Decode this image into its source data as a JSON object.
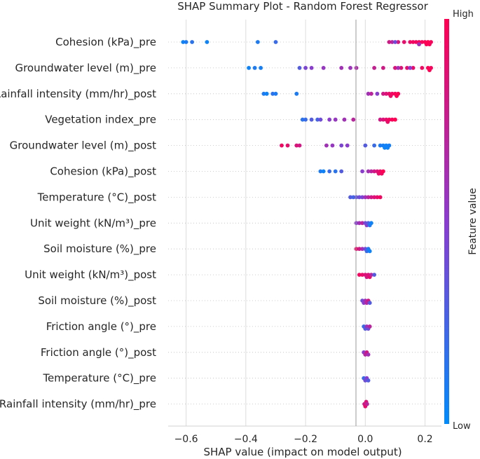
{
  "chart_data": {
    "type": "scatter",
    "subtype": "shap-beeswarm",
    "title": "SHAP Summary Plot - Random Forest Regressor",
    "xlabel": "SHAP value (impact on model output)",
    "ylabel": "",
    "xlim": [
      -0.66,
      0.255
    ],
    "x_ticks": [
      -0.6,
      -0.4,
      -0.2,
      0.0,
      0.2
    ],
    "x_tick_labels": [
      "−0.6",
      "−0.4",
      "−0.2",
      "0.0",
      "0.2"
    ],
    "grid": "vertical",
    "colorbar": {
      "label": "Feature value",
      "high_label": "High",
      "low_label": "Low",
      "low_color": "#008bfb",
      "high_color": "#ff0052"
    },
    "features": [
      {
        "name": "Cohesion (kPa)_pre",
        "points": [
          [
            -0.61,
            0.05
          ],
          [
            -0.6,
            0.1
          ],
          [
            -0.58,
            0.15
          ],
          [
            -0.53,
            0.05
          ],
          [
            -0.36,
            0.1
          ],
          [
            -0.3,
            0.2
          ],
          [
            0.08,
            0.8
          ],
          [
            0.09,
            0.7
          ],
          [
            0.11,
            0.85
          ],
          [
            0.13,
            0.9
          ],
          [
            0.15,
            0.92
          ],
          [
            0.16,
            0.95
          ],
          [
            0.17,
            0.95
          ],
          [
            0.18,
            0.97
          ],
          [
            0.19,
            0.96
          ],
          [
            0.2,
            0.98
          ],
          [
            0.205,
            0.99
          ],
          [
            0.21,
            1.0
          ],
          [
            0.215,
            0.98
          ],
          [
            0.22,
            0.97
          ],
          [
            0.18,
            0.6
          ],
          [
            0.1,
            0.4
          ]
        ]
      },
      {
        "name": "Groundwater level (m)_pre",
        "points": [
          [
            -0.39,
            0.05
          ],
          [
            -0.37,
            0.1
          ],
          [
            -0.35,
            0.08
          ],
          [
            -0.22,
            0.3
          ],
          [
            -0.2,
            0.45
          ],
          [
            -0.18,
            0.5
          ],
          [
            -0.14,
            0.55
          ],
          [
            -0.08,
            0.6
          ],
          [
            -0.05,
            0.58
          ],
          [
            -0.03,
            0.65
          ],
          [
            0.03,
            0.75
          ],
          [
            0.06,
            0.8
          ],
          [
            0.1,
            0.85
          ],
          [
            0.12,
            0.88
          ],
          [
            0.14,
            0.9
          ],
          [
            0.16,
            0.92
          ],
          [
            0.19,
            0.95
          ],
          [
            0.21,
            0.98
          ],
          [
            0.215,
            1.0
          ],
          [
            0.22,
            0.96
          ],
          [
            0.11,
            0.6
          ],
          [
            0.15,
            0.5
          ]
        ]
      },
      {
        "name": "Rainfall intensity (mm/hr)_post",
        "points": [
          [
            -0.34,
            0.1
          ],
          [
            -0.33,
            0.05
          ],
          [
            -0.31,
            0.15
          ],
          [
            -0.3,
            0.1
          ],
          [
            -0.23,
            0.1
          ],
          [
            0.01,
            0.6
          ],
          [
            0.02,
            0.7
          ],
          [
            0.04,
            0.5
          ],
          [
            0.06,
            0.8
          ],
          [
            0.07,
            0.85
          ],
          [
            0.08,
            0.9
          ],
          [
            0.085,
            0.92
          ],
          [
            0.09,
            0.95
          ],
          [
            0.1,
            0.97
          ],
          [
            0.105,
            0.99
          ],
          [
            0.11,
            1.0
          ]
        ]
      },
      {
        "name": "Vegetation index_pre",
        "points": [
          [
            -0.21,
            0.15
          ],
          [
            -0.2,
            0.2
          ],
          [
            -0.18,
            0.3
          ],
          [
            -0.16,
            0.25
          ],
          [
            -0.15,
            0.4
          ],
          [
            -0.12,
            0.5
          ],
          [
            -0.1,
            0.55
          ],
          [
            -0.07,
            0.6
          ],
          [
            -0.04,
            0.7
          ],
          [
            0.05,
            0.8
          ],
          [
            0.06,
            0.85
          ],
          [
            0.07,
            0.9
          ],
          [
            0.075,
            0.92
          ],
          [
            0.08,
            0.95
          ],
          [
            0.09,
            0.97
          ],
          [
            0.1,
            1.0
          ]
        ]
      },
      {
        "name": "Groundwater level (m)_post",
        "points": [
          [
            -0.28,
            0.95
          ],
          [
            -0.26,
            0.9
          ],
          [
            -0.23,
            0.85
          ],
          [
            -0.22,
            0.8
          ],
          [
            -0.13,
            0.6
          ],
          [
            -0.11,
            0.55
          ],
          [
            -0.08,
            0.45
          ],
          [
            -0.06,
            0.5
          ],
          [
            0.0,
            0.3
          ],
          [
            0.03,
            0.2
          ],
          [
            0.05,
            0.1
          ],
          [
            0.06,
            0.08
          ],
          [
            0.065,
            0.05
          ],
          [
            0.07,
            0.06
          ],
          [
            0.075,
            0.05
          ],
          [
            0.08,
            0.08
          ]
        ]
      },
      {
        "name": "Cohesion (kPa)_post",
        "points": [
          [
            -0.15,
            0.1
          ],
          [
            -0.14,
            0.05
          ],
          [
            -0.12,
            0.2
          ],
          [
            -0.1,
            0.15
          ],
          [
            -0.08,
            0.3
          ],
          [
            -0.01,
            0.5
          ],
          [
            0.01,
            0.6
          ],
          [
            0.02,
            0.7
          ],
          [
            0.03,
            0.8
          ],
          [
            0.04,
            0.85
          ],
          [
            0.045,
            0.9
          ],
          [
            0.05,
            0.92
          ],
          [
            0.055,
            0.95
          ],
          [
            0.06,
            1.0
          ]
        ]
      },
      {
        "name": "Temperature (°C)_post",
        "points": [
          [
            -0.05,
            0.3
          ],
          [
            -0.04,
            0.25
          ],
          [
            -0.03,
            0.35
          ],
          [
            -0.02,
            0.4
          ],
          [
            -0.01,
            0.45
          ],
          [
            0.0,
            0.6
          ],
          [
            0.01,
            0.7
          ],
          [
            0.02,
            0.8
          ],
          [
            0.03,
            0.85
          ],
          [
            0.04,
            0.9
          ],
          [
            0.05,
            0.95
          ]
        ]
      },
      {
        "name": "Unit weight (kN/m³)_pre",
        "points": [
          [
            -0.03,
            0.5
          ],
          [
            -0.02,
            0.6
          ],
          [
            -0.01,
            0.7
          ],
          [
            0.0,
            0.4
          ],
          [
            0.005,
            0.5
          ],
          [
            0.01,
            0.3
          ],
          [
            0.015,
            0.1
          ],
          [
            0.02,
            0.05
          ]
        ]
      },
      {
        "name": "Soil moisture (%)_pre",
        "points": [
          [
            -0.03,
            0.9
          ],
          [
            -0.02,
            0.8
          ],
          [
            -0.01,
            0.6
          ],
          [
            0.0,
            0.4
          ],
          [
            0.005,
            0.2
          ],
          [
            0.01,
            0.1
          ],
          [
            0.015,
            0.05
          ]
        ]
      },
      {
        "name": "Unit weight (kN/m³)_post",
        "points": [
          [
            -0.02,
            0.95
          ],
          [
            -0.01,
            0.9
          ],
          [
            0.0,
            0.85
          ],
          [
            0.005,
            0.8
          ],
          [
            0.01,
            0.85
          ],
          [
            0.015,
            0.9
          ],
          [
            0.02,
            0.7
          ],
          [
            0.03,
            0.3
          ]
        ]
      },
      {
        "name": "Soil moisture (%)_post",
        "points": [
          [
            -0.01,
            0.4
          ],
          [
            -0.005,
            0.5
          ],
          [
            0.0,
            0.6
          ],
          [
            0.005,
            0.7
          ],
          [
            0.01,
            0.8
          ],
          [
            0.015,
            0.3
          ]
        ]
      },
      {
        "name": "Friction angle (°)_pre",
        "points": [
          [
            -0.005,
            0.2
          ],
          [
            0.0,
            0.3
          ],
          [
            0.005,
            0.6
          ],
          [
            0.01,
            0.4
          ],
          [
            0.015,
            0.7
          ]
        ]
      },
      {
        "name": "Friction angle (°)_post",
        "points": [
          [
            -0.005,
            0.5
          ],
          [
            0.0,
            0.7
          ],
          [
            0.005,
            0.8
          ],
          [
            0.01,
            0.6
          ]
        ]
      },
      {
        "name": "Temperature (°C)_pre",
        "points": [
          [
            -0.005,
            0.2
          ],
          [
            0.0,
            0.4
          ],
          [
            0.005,
            0.5
          ],
          [
            0.01,
            0.3
          ]
        ]
      },
      {
        "name": "Rainfall intensity (mm/hr)_pre",
        "points": [
          [
            -0.003,
            0.8
          ],
          [
            0.0,
            0.9
          ],
          [
            0.003,
            0.85
          ],
          [
            0.006,
            0.7
          ]
        ]
      }
    ]
  }
}
